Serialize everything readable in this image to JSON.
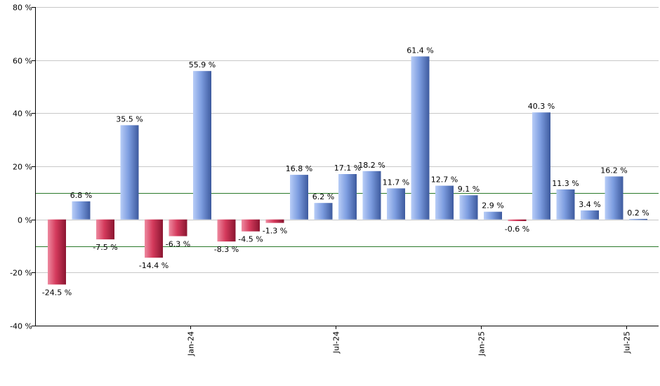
{
  "chart_data": {
    "type": "bar",
    "title": "",
    "xlabel": "",
    "ylabel": "",
    "ylim": [
      -40,
      80
    ],
    "yticks": [
      80,
      60,
      40,
      20,
      0,
      -20,
      -40
    ],
    "ytick_labels": [
      "80 %",
      "60 %",
      "40 %",
      "20 %",
      "0 %",
      "-20 %",
      "-40 %"
    ],
    "grid": true,
    "values": [
      -24.5,
      6.8,
      -7.5,
      35.5,
      -14.4,
      -6.3,
      55.9,
      -8.3,
      -4.5,
      -1.3,
      16.8,
      6.2,
      17.1,
      18.2,
      11.7,
      61.4,
      12.7,
      9.1,
      2.9,
      -0.6,
      40.3,
      11.3,
      3.4,
      16.2,
      0.2
    ],
    "value_labels": [
      "-24.5 %",
      "6.8 %",
      "-7.5 %",
      "35.5 %",
      "-14.4 %",
      "-6.3 %",
      "55.9 %",
      "-8.3 %",
      "-4.5 %",
      "-1.3 %",
      "16.8 %",
      "6.2 %",
      "17.1 %",
      "18.2 %",
      "11.7 %",
      "61.4 %",
      "12.7 %",
      "9.1 %",
      "2.9 %",
      "-0.6 %",
      "40.3 %",
      "11.3 %",
      "3.4 %",
      "16.2 %",
      "0.2 %"
    ],
    "x_tick_labels": [
      {
        "label": "Jan-24",
        "position": 5.5
      },
      {
        "label": "Jul-24",
        "position": 11.5
      },
      {
        "label": "Jan-25",
        "position": 17.5
      },
      {
        "label": "Jul-25",
        "position": 23.5
      }
    ],
    "reference_lines": [
      10,
      -10
    ],
    "colors": {
      "positive_light": "#b8cdf7",
      "positive_mid": "#7d9de0",
      "positive_dark": "#3d5a9e",
      "negative_light": "#ee8aa0",
      "negative_mid": "#d43a5c",
      "negative_dark": "#8a1530",
      "reference_line": "#2a7a2a",
      "grid": "#c8c8c8",
      "axis": "#000000"
    }
  }
}
